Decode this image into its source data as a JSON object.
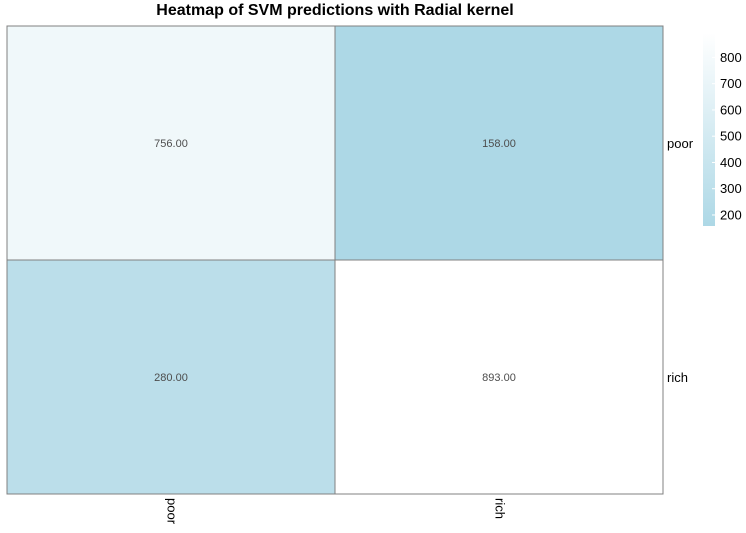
{
  "chart_data": {
    "type": "heatmap",
    "title": "Heatmap of SVM predictions with Radial kernel",
    "rows": [
      "poor",
      "rich"
    ],
    "columns": [
      "poor",
      "rich"
    ],
    "values": [
      [
        756,
        158
      ],
      [
        280,
        893
      ]
    ],
    "cell_labels": [
      [
        "756.00",
        "158.00"
      ],
      [
        "280.00",
        "893.00"
      ]
    ],
    "color_scale": {
      "low": "#add8e6",
      "high": "#ffffff",
      "min": 158,
      "max": 893
    },
    "legend": {
      "position": "right",
      "ticks": [
        200,
        300,
        400,
        500,
        600,
        700,
        800
      ],
      "tick_labels": [
        "200",
        "300",
        "400",
        "500",
        "600",
        "700",
        "800"
      ]
    },
    "cell_border_color": "#808080",
    "grid": false
  }
}
